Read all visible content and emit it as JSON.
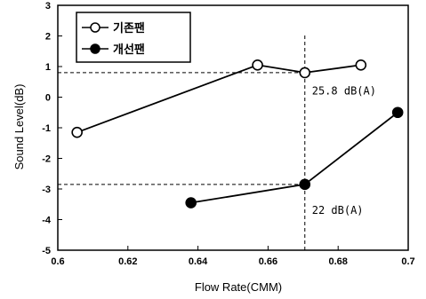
{
  "chart_data": {
    "type": "line",
    "xlabel": "Flow Rate(CMM)",
    "ylabel": "Sound Level(dB)",
    "xlim": [
      0.6,
      0.7
    ],
    "ylim": [
      -5,
      3
    ],
    "x_ticks": [
      0.6,
      0.62,
      0.64,
      0.66,
      0.68,
      0.7
    ],
    "x_tick_labels": [
      "0.6",
      "0.62",
      "0.64",
      "0.66",
      "0.68",
      "0.7"
    ],
    "y_ticks": [
      -5,
      -4,
      -3,
      -2,
      -1,
      0,
      1,
      2,
      3
    ],
    "y_tick_labels": [
      "-5",
      "-4",
      "-3",
      "-2",
      "-1",
      "0",
      "1",
      "2",
      "3"
    ],
    "grid": false,
    "legend_position": "top-left",
    "series": [
      {
        "name": "기존팬",
        "marker": "open-circle",
        "x": [
          0.6055,
          0.657,
          0.6705,
          0.6865
        ],
        "y": [
          -1.15,
          1.05,
          0.8,
          1.05
        ]
      },
      {
        "name": "개선팬",
        "marker": "filled-circle",
        "x": [
          0.638,
          0.6705,
          0.697
        ],
        "y": [
          -3.45,
          -2.85,
          -0.5
        ]
      }
    ],
    "reference_lines": [
      {
        "orientation": "vertical",
        "x": 0.6705
      },
      {
        "orientation": "horizontal",
        "y": 0.8
      },
      {
        "orientation": "horizontal",
        "y": -2.85
      }
    ],
    "annotations": [
      {
        "text": "25.8 dB(A)",
        "x": 0.671,
        "y": 0.5
      },
      {
        "text": "22 dB(A)",
        "x": 0.671,
        "y": -3.4
      }
    ]
  }
}
